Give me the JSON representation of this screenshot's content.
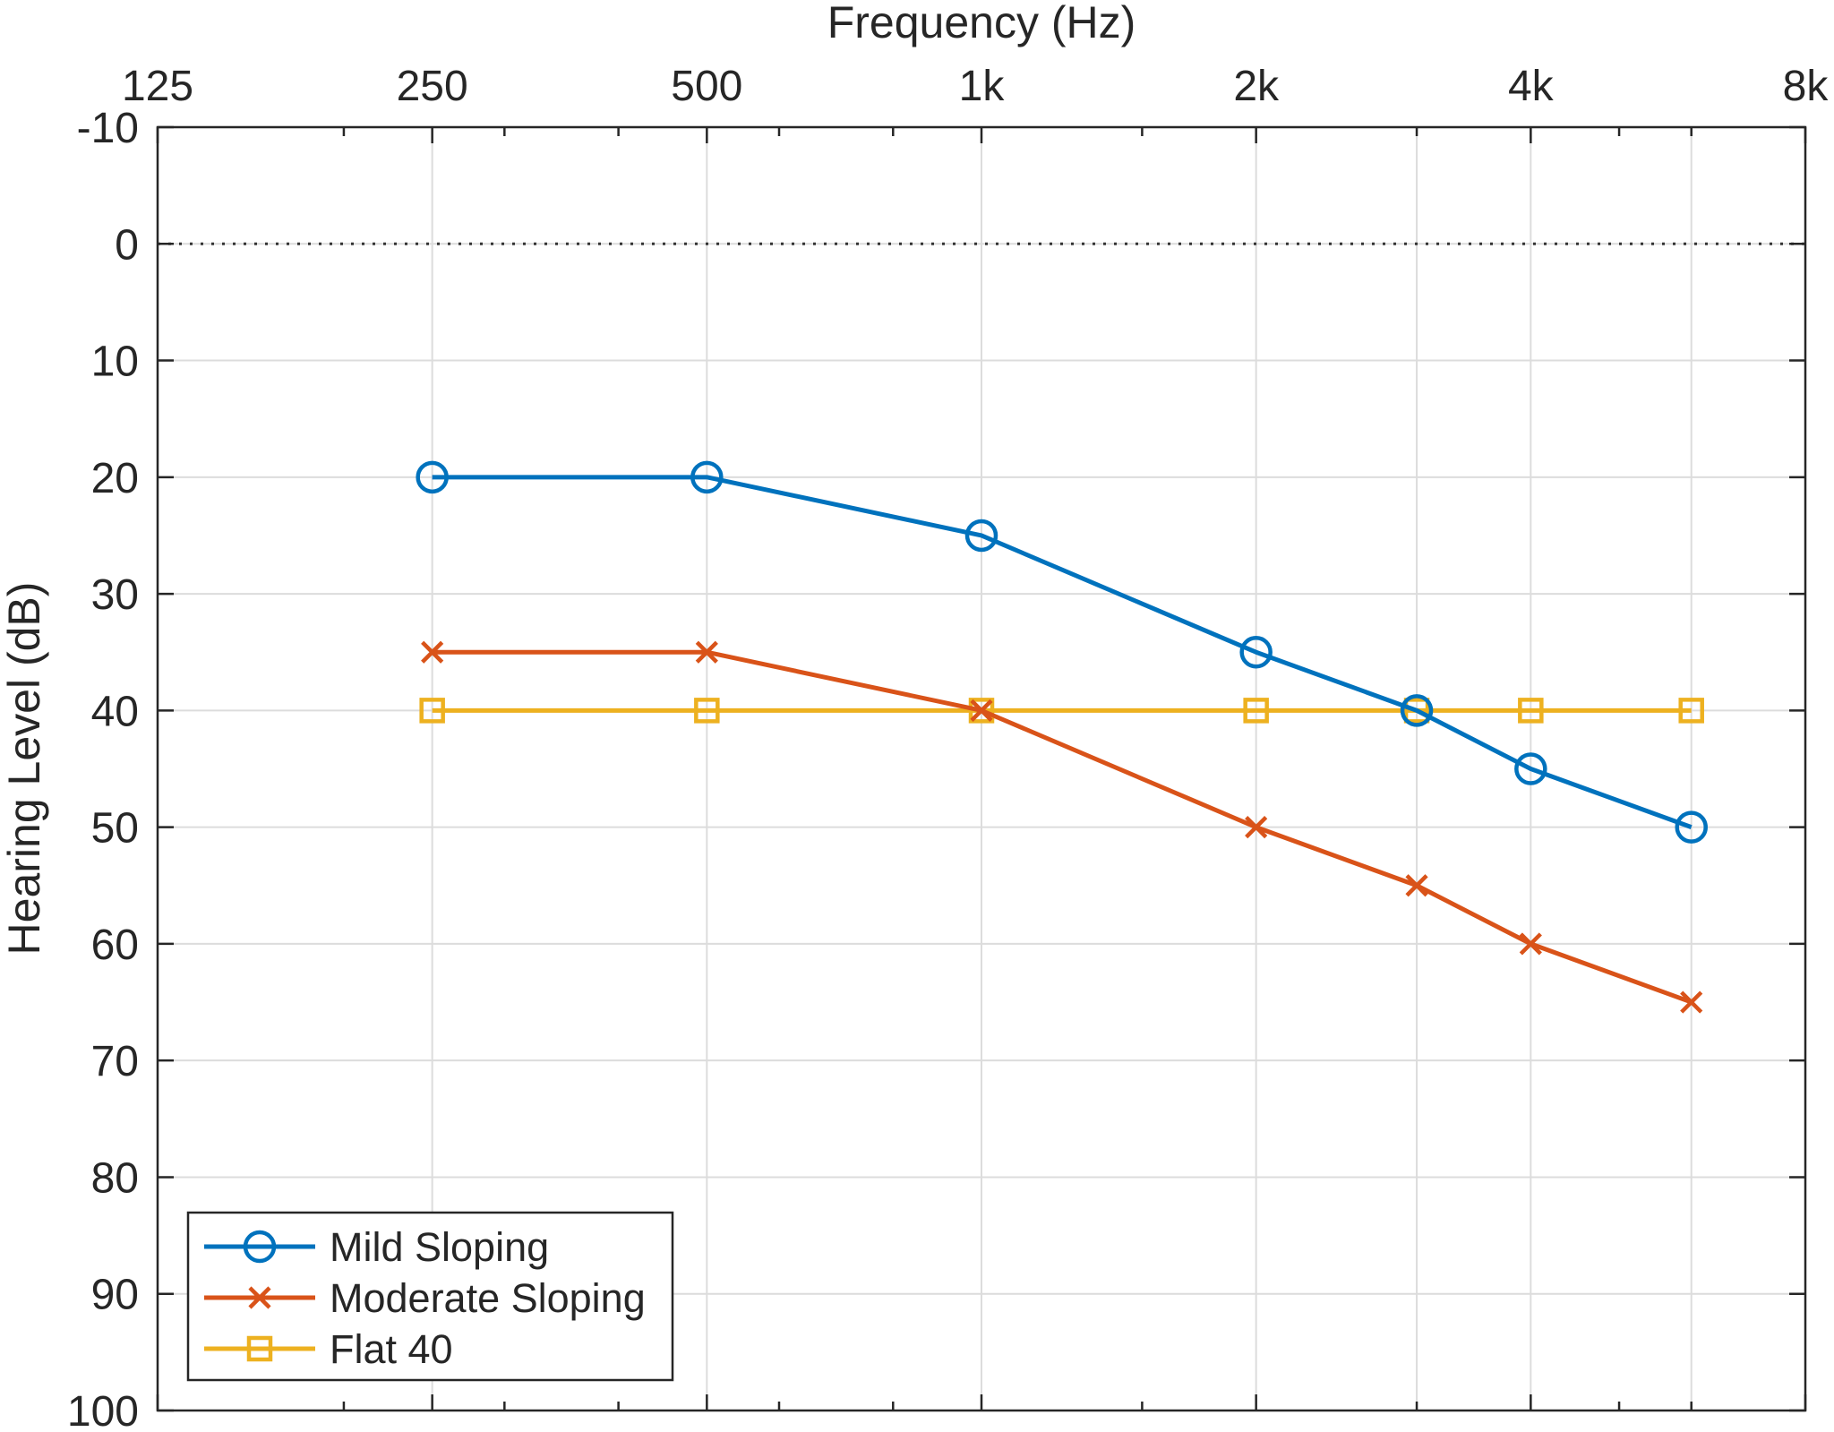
{
  "chart_data": {
    "type": "line",
    "title": "",
    "xlabel": "Frequency (Hz)",
    "ylabel": "Hearing Level (dB)",
    "x_scale": "log2",
    "x_axis_position": "top",
    "y_reversed": true,
    "xlim": [
      125,
      8000
    ],
    "ylim": [
      -10,
      100
    ],
    "x_ticks": [
      125,
      250,
      500,
      1000,
      2000,
      4000,
      8000
    ],
    "x_tick_labels": [
      "125",
      "250",
      "500",
      "1k",
      "2k",
      "4k",
      "8k"
    ],
    "y_ticks": [
      -10,
      0,
      10,
      20,
      30,
      40,
      50,
      60,
      70,
      80,
      90,
      100
    ],
    "y_tick_labels": [
      "-10",
      "0",
      "10",
      "20",
      "30",
      "40",
      "50",
      "60",
      "70",
      "80",
      "90",
      "100"
    ],
    "grid": true,
    "reference_line": {
      "y": 0,
      "style": "dotted"
    },
    "legend_position": "bottom-left",
    "x": [
      250,
      500,
      1000,
      2000,
      3000,
      4000,
      6000
    ],
    "series": [
      {
        "name": "Mild Sloping",
        "marker": "circle",
        "color": "#0072BD",
        "values": [
          20,
          20,
          25,
          35,
          40,
          45,
          50
        ]
      },
      {
        "name": "Moderate Sloping",
        "marker": "x",
        "color": "#D95319",
        "values": [
          35,
          35,
          40,
          50,
          55,
          60,
          65
        ]
      },
      {
        "name": "Flat 40",
        "marker": "square",
        "color": "#EDB120",
        "values": [
          40,
          40,
          40,
          40,
          40,
          40,
          40
        ]
      }
    ]
  }
}
